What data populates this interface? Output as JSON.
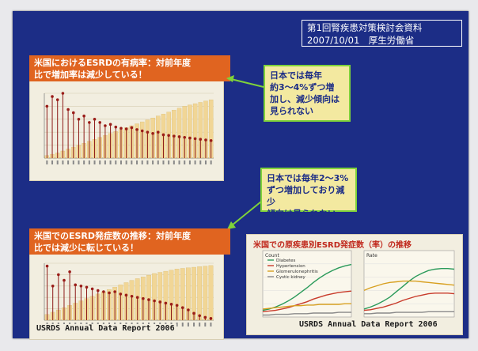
{
  "header": {
    "line1": "第1回腎疾患対策検討会資料",
    "line2": "2007/10/01　厚生労働省"
  },
  "panel_prevalence": {
    "title_line1": "米国におけるESRDの有病率：対前年度",
    "title_line2": "比で増加率は減少している！"
  },
  "note_prevalence": {
    "line1": "日本では毎年",
    "line2": "約3～4%ずつ増",
    "line3": "加し、減少傾向は",
    "line4": "見られない"
  },
  "note_incidence": {
    "line1": "日本では毎年2～3%",
    "line2": "ずつ増加しており減少",
    "line3": "傾向は見られない"
  },
  "panel_incidence": {
    "title_line1": "米国でのESRD発症数の推移：対前年度",
    "title_line2": "比では減少に転じている！",
    "caption": "USRDS Annual Data Report 2006"
  },
  "panel_cause": {
    "title": "米国での原疾患別ESRD発症数（率）の推移",
    "caption": "USRDS Annual Data Report 2006",
    "sub_left": "Count",
    "sub_right": "Rate",
    "legend": [
      "Diabetes",
      "Hypertension",
      "Glomerulonephritis",
      "Cystic kidney"
    ]
  },
  "chart_data": [
    {
      "type": "bar",
      "name": "prevalence",
      "bars": [
        4,
        6,
        8,
        11,
        14,
        17,
        20,
        23,
        26,
        29,
        32,
        35,
        38,
        41,
        44,
        47,
        50,
        53,
        56,
        59,
        62,
        65,
        68,
        71,
        74,
        77,
        80,
        82,
        84,
        86,
        88,
        90
      ],
      "stems": [
        80,
        95,
        90,
        100,
        75,
        70,
        60,
        65,
        55,
        60,
        55,
        50,
        52,
        48,
        46,
        45,
        47,
        44,
        42,
        40,
        38,
        40,
        36,
        35,
        34,
        33,
        32,
        31,
        30,
        29,
        28,
        27
      ],
      "ylim": [
        0,
        100
      ]
    },
    {
      "type": "bar",
      "name": "incidence",
      "bars": [
        10,
        14,
        18,
        22,
        26,
        30,
        34,
        38,
        42,
        46,
        50,
        54,
        58,
        62,
        66,
        70,
        73,
        76,
        79,
        82,
        84,
        86,
        88,
        90,
        91,
        92,
        93,
        94,
        95,
        96
      ],
      "stems": [
        95,
        60,
        80,
        70,
        85,
        62,
        60,
        58,
        55,
        52,
        50,
        48,
        50,
        46,
        44,
        42,
        40,
        38,
        36,
        34,
        32,
        30,
        28,
        26,
        22,
        18,
        12,
        8,
        5,
        3
      ],
      "ylim": [
        0,
        100
      ]
    },
    {
      "type": "line",
      "name": "cause-left",
      "series": [
        {
          "color": "#2a9a5a",
          "values": [
            10,
            12,
            15,
            19,
            24,
            30,
            37,
            44,
            52,
            59,
            65,
            70,
            74,
            77,
            79
          ]
        },
        {
          "color": "#c83a2a",
          "values": [
            8,
            9,
            10,
            12,
            14,
            17,
            20,
            23,
            27,
            30,
            33,
            35,
            37,
            38,
            39
          ]
        },
        {
          "color": "#d8a020",
          "values": [
            12,
            13,
            14,
            15,
            16,
            17,
            17,
            18,
            18,
            19,
            19,
            19,
            19,
            20,
            20
          ]
        },
        {
          "color": "#8a8a8a",
          "values": [
            3,
            3,
            4,
            4,
            4,
            5,
            5,
            5,
            6,
            6,
            6,
            6,
            7,
            7,
            7
          ]
        }
      ],
      "ylim": [
        0,
        100
      ]
    },
    {
      "type": "line",
      "name": "cause-right",
      "series": [
        {
          "color": "#2a9a5a",
          "values": [
            12,
            15,
            19,
            24,
            30,
            38,
            46,
            54,
            61,
            66,
            70,
            72,
            73,
            73,
            72
          ]
        },
        {
          "color": "#c83a2a",
          "values": [
            10,
            11,
            13,
            15,
            18,
            21,
            25,
            28,
            31,
            33,
            35,
            36,
            36,
            36,
            35
          ]
        },
        {
          "color": "#d8a020",
          "values": [
            40,
            44,
            47,
            50,
            52,
            53,
            54,
            54,
            54,
            53,
            52,
            51,
            50,
            49,
            48
          ]
        },
        {
          "color": "#8a8a8a",
          "values": [
            5,
            5,
            6,
            6,
            6,
            7,
            7,
            7,
            7,
            7,
            8,
            8,
            8,
            8,
            8
          ]
        }
      ],
      "ylim": [
        0,
        100
      ]
    }
  ]
}
